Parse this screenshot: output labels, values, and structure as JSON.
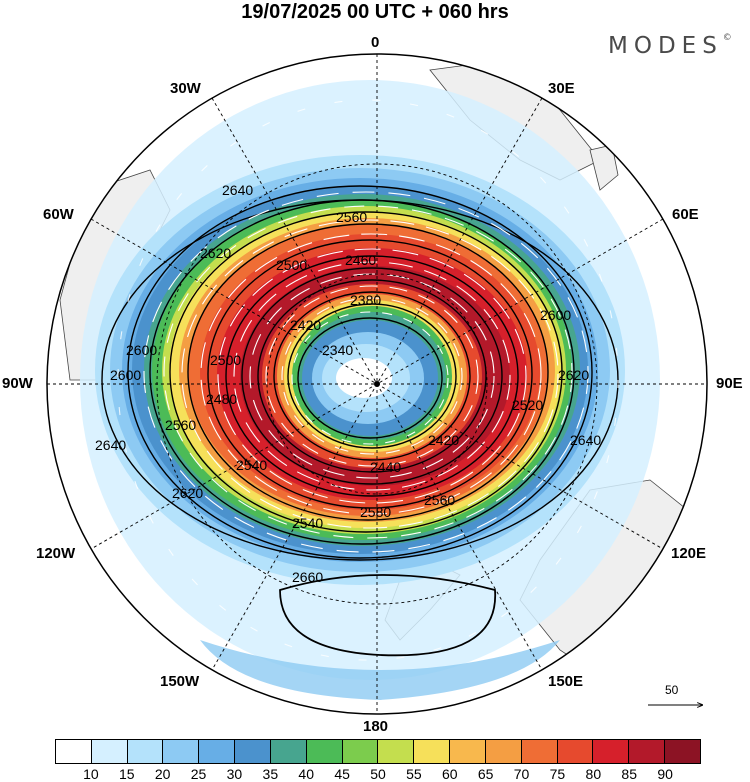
{
  "title": "19/07/2025  00 UTC  + 060 hrs",
  "brand": "MODES",
  "brand_mark": "©",
  "longitude_labels": {
    "n": "0",
    "ne30": "30E",
    "ne60": "60E",
    "e": "90E",
    "se120": "120E",
    "se150": "150E",
    "s": "180",
    "sw150": "150W",
    "sw120": "120W",
    "w": "90W",
    "nw60": "60W",
    "nw30": "30W"
  },
  "contour_labels": [
    "2340",
    "2380",
    "2420",
    "2460",
    "2500",
    "2540",
    "2560",
    "2580",
    "2600",
    "2620",
    "2640",
    "2660",
    "2420",
    "2440",
    "2480",
    "2560",
    "2520",
    "2600",
    "2620",
    "2640",
    "2640",
    "2620",
    "2600",
    "2560",
    "2540",
    "2500"
  ],
  "vector_legend": "50",
  "colorbar": {
    "colors": [
      "#ffffff",
      "#d5f0ff",
      "#b4e2fb",
      "#8dcaf3",
      "#67aee6",
      "#4b92cd",
      "#47a58f",
      "#4cbb57",
      "#7ccc4d",
      "#c4de4e",
      "#f6e05a",
      "#f8b84d",
      "#f49e43",
      "#ef6d35",
      "#e64a2e",
      "#d6202b",
      "#b3192a",
      "#8c1324"
    ],
    "ticks": [
      "10",
      "15",
      "20",
      "25",
      "30",
      "35",
      "40",
      "45",
      "50",
      "55",
      "60",
      "65",
      "70",
      "75",
      "80",
      "85",
      "90"
    ]
  },
  "colors": {
    "land": "#efefef",
    "coast": "#444444",
    "contour": "#000000",
    "vector": "#ffffff"
  }
}
